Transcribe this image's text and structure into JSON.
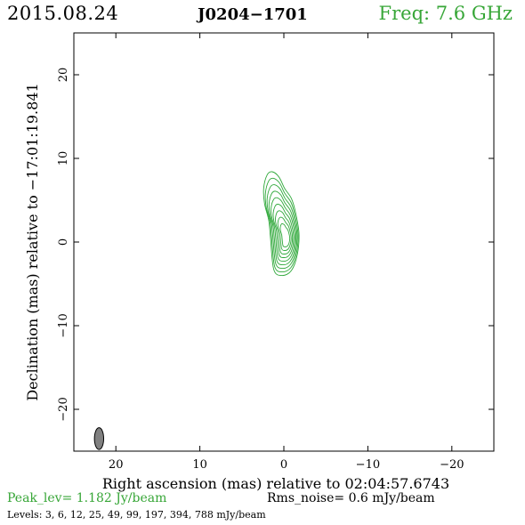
{
  "header": {
    "date": "2015.08.24",
    "source": "J0204−1701",
    "freq": "Freq: 7.6 GHz"
  },
  "colors": {
    "contour": "#2fa83a",
    "freq_text": "#37a637",
    "peak_text": "#37a637",
    "beam_fill": "#808080",
    "axis": "#000000"
  },
  "footer": {
    "peak": "Peak_lev=  1.182 Jy/beam",
    "rms": "Rms_noise=  0.6 mJy/beam",
    "levels": "Levels:   3,   6,  12,  25,  49,  99, 197, 394, 788 mJy/beam"
  },
  "chart_data": {
    "type": "contour",
    "title": "J0204−1701",
    "xlabel": "Right ascension (mas) relative to 02:04:57.6743",
    "ylabel": "Declination (mas) relative to −17:01:19.841",
    "xlim": [
      25,
      -25
    ],
    "ylim": [
      -25,
      25
    ],
    "x_ticks": [
      20,
      10,
      0,
      -10,
      -20
    ],
    "x_tick_labels": [
      "20",
      "10",
      "0",
      "−10",
      "−20"
    ],
    "y_ticks": [
      20,
      10,
      0,
      -10,
      -20
    ],
    "y_tick_labels": [
      "20",
      "10",
      "0",
      "−10",
      "−20"
    ],
    "contour_levels_mJy": [
      3,
      6,
      12,
      25,
      49,
      99,
      197,
      394,
      788
    ],
    "peak_Jy_per_beam": 1.182,
    "rms_noise_mJy_per_beam": 0.6,
    "beam": {
      "x": 22,
      "y": -23.5,
      "major_mas": 2.6,
      "minor_mas": 1.1,
      "pa_deg": 0
    }
  }
}
